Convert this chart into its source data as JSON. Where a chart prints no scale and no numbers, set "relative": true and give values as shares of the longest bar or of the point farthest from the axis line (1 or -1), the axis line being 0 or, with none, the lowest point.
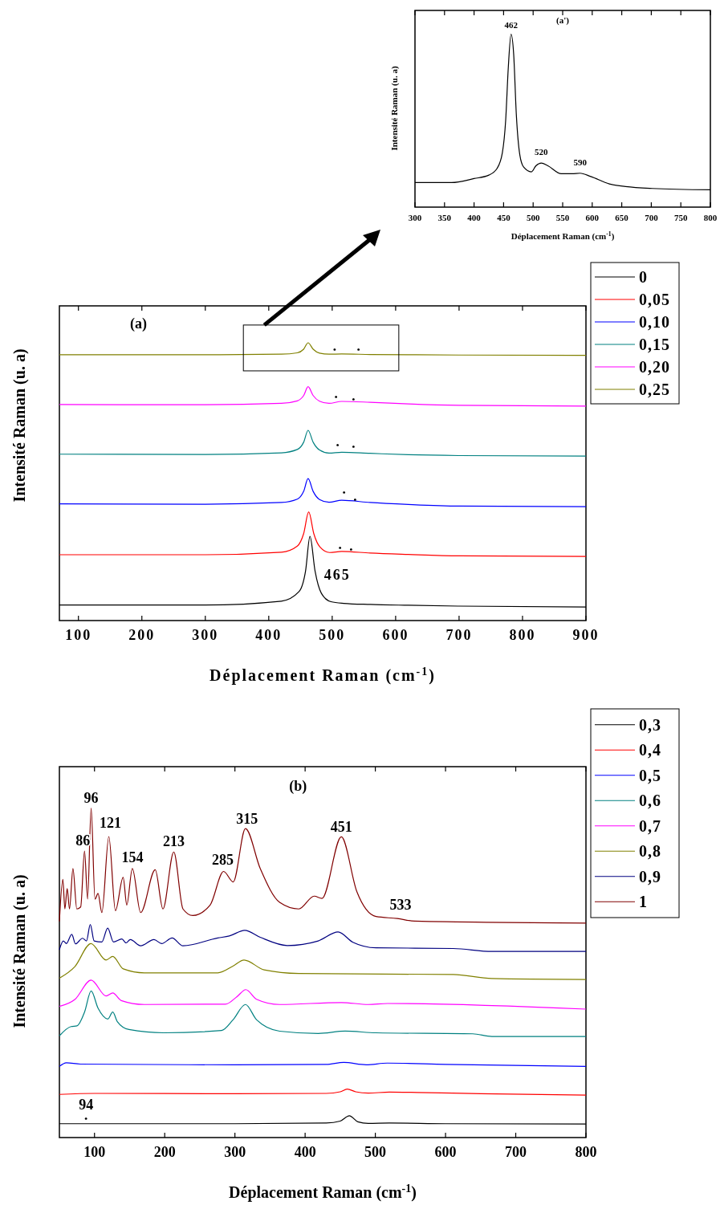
{
  "chart_data": [
    {
      "type": "line",
      "title": "(a')",
      "xlabel": "Déplacement Raman (cm$^{-1}$)",
      "ylabel": "Intensité Raman (u. a)",
      "relative": true,
      "xlim": [
        300,
        800
      ],
      "xticks": [
        300,
        350,
        400,
        450,
        500,
        550,
        600,
        650,
        700,
        750,
        800
      ],
      "series": [
        {
          "color": "#000000",
          "x": [
            300,
            362,
            400,
            425,
            439,
            448,
            453.5,
            458,
            462.6,
            467,
            471.6,
            477.5,
            484,
            497,
            504.7,
            513.8,
            525,
            547.7,
            565.8,
            579.4,
            597.6,
            629,
            656.4,
            701.7,
            800
          ],
          "values": [
            0.142,
            0.142,
            0.165,
            0.185,
            0.224,
            0.316,
            0.501,
            0.81,
            1.0,
            0.887,
            0.532,
            0.301,
            0.231,
            0.204,
            0.239,
            0.255,
            0.239,
            0.193,
            0.193,
            0.196,
            0.177,
            0.134,
            0.119,
            0.108,
            0.1
          ]
        }
      ],
      "annotations": [
        {
          "text": "462",
          "x": 462.6,
          "y": 1.0
        },
        {
          "text": "520",
          "x": 513.8,
          "y": 0.255
        },
        {
          "text": "590",
          "x": 579.4,
          "y": 0.196
        }
      ]
    },
    {
      "type": "line",
      "title": "(a)",
      "xlabel": "Déplacement Raman (cm$^{-1}$)",
      "ylabel": "Intensité Raman (u. a)",
      "relative": true,
      "xlim": [
        70,
        900
      ],
      "xticks": [
        100,
        200,
        300,
        400,
        500,
        600,
        700,
        800,
        900
      ],
      "legend": "top right",
      "series": [
        {
          "name": "0",
          "color": "#000000",
          "x": [
            70,
            300,
            420,
            448,
            458,
            465,
            473,
            483,
            498,
            518,
            560,
            620,
            700,
            900
          ],
          "values": [
            0.056,
            0.056,
            0.07,
            0.105,
            0.178,
            0.303,
            0.178,
            0.098,
            0.068,
            0.062,
            0.058,
            0.055,
            0.052,
            0.049
          ]
        },
        {
          "name": "0,05",
          "color": "#ff0000",
          "x": [
            70,
            300,
            420,
            445,
            455,
            463,
            471,
            481,
            496,
            515,
            560,
            620,
            700,
            900
          ],
          "values": [
            0.237,
            0.237,
            0.246,
            0.268,
            0.313,
            0.391,
            0.313,
            0.264,
            0.245,
            0.249,
            0.243,
            0.238,
            0.233,
            0.231
          ]
        },
        {
          "name": "0,10",
          "color": "#0000ff",
          "x": [
            70,
            300,
            420,
            445,
            455,
            462,
            470,
            480,
            495,
            515,
            560,
            620,
            700,
            900
          ],
          "values": [
            0.42,
            0.419,
            0.425,
            0.437,
            0.465,
            0.511,
            0.465,
            0.436,
            0.426,
            0.433,
            0.425,
            0.418,
            0.412,
            0.41
          ]
        },
        {
          "name": "0,15",
          "color": "#008080",
          "x": [
            70,
            300,
            420,
            445,
            455,
            462,
            470,
            480,
            495,
            515,
            560,
            620,
            700,
            900
          ],
          "values": [
            0.599,
            0.598,
            0.604,
            0.616,
            0.642,
            0.685,
            0.642,
            0.614,
            0.603,
            0.606,
            0.602,
            0.597,
            0.594,
            0.592
          ]
        },
        {
          "name": "0,20",
          "color": "#ff00ff",
          "x": [
            70,
            300,
            420,
            445,
            455,
            462,
            470,
            480,
            495,
            515,
            560,
            620,
            700,
            900
          ],
          "values": [
            0.778,
            0.777,
            0.782,
            0.791,
            0.81,
            0.842,
            0.81,
            0.79,
            0.782,
            0.789,
            0.786,
            0.78,
            0.775,
            0.772
          ]
        },
        {
          "name": "0,25",
          "color": "#808000",
          "x": [
            70,
            300,
            420,
            445,
            455,
            462,
            470,
            480,
            495,
            515,
            560,
            620,
            700,
            900
          ],
          "values": [
            0.957,
            0.957,
            0.959,
            0.964,
            0.977,
            1.0,
            0.977,
            0.963,
            0.959,
            0.96,
            0.958,
            0.957,
            0.956,
            0.955
          ]
        }
      ],
      "annotations": [
        {
          "text": "465",
          "x": 465,
          "y": 0.303
        },
        {
          "text": "•",
          "x": 495,
          "y": 0.959
        },
        {
          "text": "•",
          "x": 515,
          "y": 0.96
        },
        {
          "text": "•",
          "x": 515,
          "y": 0.789
        },
        {
          "text": "•",
          "x": 560,
          "y": 0.786
        },
        {
          "text": "•",
          "x": 515,
          "y": 0.606
        },
        {
          "text": "•",
          "x": 560,
          "y": 0.602
        },
        {
          "text": "•",
          "x": 515,
          "y": 0.433
        },
        {
          "text": "•",
          "x": 560,
          "y": 0.425
        },
        {
          "text": "•",
          "x": 515,
          "y": 0.249
        },
        {
          "text": "•",
          "x": 560,
          "y": 0.243
        }
      ]
    },
    {
      "type": "line",
      "title": "(b)",
      "xlabel": "Déplacement Raman (cm$^{-1}$)",
      "ylabel": "Intensité Raman (u. a)",
      "relative": true,
      "xlim": [
        50,
        800
      ],
      "xticks": [
        100,
        200,
        300,
        400,
        500,
        600,
        700,
        800
      ],
      "legend": "top right",
      "series": [
        {
          "name": "0,3",
          "color": "#000000",
          "x": [
            50,
            300,
            430,
            450,
            463,
            475,
            490,
            520,
            600,
            800
          ],
          "values": [
            0.042,
            0.042,
            0.044,
            0.05,
            0.066,
            0.048,
            0.043,
            0.044,
            0.042,
            0.041
          ]
        },
        {
          "name": "0,4",
          "color": "#ff0000",
          "x": [
            50,
            100,
            300,
            430,
            450,
            460,
            472,
            490,
            520,
            560,
            650,
            800
          ],
          "values": [
            0.131,
            0.134,
            0.133,
            0.134,
            0.139,
            0.147,
            0.139,
            0.135,
            0.138,
            0.137,
            0.133,
            0.129
          ]
        },
        {
          "name": "0,5",
          "color": "#0000ff",
          "x": [
            50,
            60,
            80,
            300,
            430,
            455,
            487,
            517,
            600,
            800
          ],
          "values": [
            0.216,
            0.227,
            0.223,
            0.221,
            0.222,
            0.228,
            0.221,
            0.226,
            0.222,
            0.216
          ]
        },
        {
          "name": "0,6",
          "color": "#008080",
          "x": [
            50,
            66.6,
            75,
            85.8,
            95.2,
            105,
            119,
            126,
            132.5,
            149,
            198.6,
            281,
            297.5,
            315,
            330.7,
            363.7,
            418.7,
            457,
            501,
            638.7,
            666,
            800
          ],
          "values": [
            0.309,
            0.337,
            0.339,
            0.381,
            0.445,
            0.393,
            0.36,
            0.381,
            0.352,
            0.328,
            0.318,
            0.325,
            0.358,
            0.404,
            0.358,
            0.323,
            0.316,
            0.323,
            0.318,
            0.315,
            0.307,
            0.307
          ]
        },
        {
          "name": "0,7",
          "color": "#ff00ff",
          "x": [
            50,
            72,
            95.2,
            116.5,
            126,
            138,
            171,
            286.5,
            303,
            315.5,
            330.7,
            363.7,
            451.6,
            490,
            517.6,
            800
          ],
          "values": [
            0.398,
            0.419,
            0.478,
            0.43,
            0.439,
            0.416,
            0.404,
            0.405,
            0.428,
            0.449,
            0.42,
            0.404,
            0.41,
            0.404,
            0.407,
            0.39
          ]
        },
        {
          "name": "0,8",
          "color": "#808000",
          "x": [
            50,
            72,
            95,
            116.5,
            126,
            141,
            171,
            275.6,
            297.6,
            313,
            341.6,
            391,
            611,
            666,
            800
          ],
          "values": [
            0.484,
            0.519,
            0.589,
            0.539,
            0.55,
            0.512,
            0.5,
            0.5,
            0.521,
            0.539,
            0.509,
            0.498,
            0.495,
            0.483,
            0.48
          ]
        },
        {
          "name": "0,9",
          "color": "#000080",
          "x": [
            50,
            55.5,
            60,
            67.6,
            73,
            83,
            88.5,
            94,
            99.5,
            110.5,
            118.8,
            127,
            139,
            145,
            151,
            165.7,
            184.7,
            195.7,
            210.6,
            226,
            275.6,
            292,
            314,
            336,
            374.6,
            418.6,
            447,
            468,
            501,
            611,
            666,
            800
          ],
          "values": [
            0.57,
            0.597,
            0.589,
            0.617,
            0.588,
            0.605,
            0.597,
            0.647,
            0.597,
            0.594,
            0.636,
            0.594,
            0.603,
            0.591,
            0.601,
            0.582,
            0.601,
            0.589,
            0.606,
            0.582,
            0.606,
            0.612,
            0.629,
            0.608,
            0.583,
            0.597,
            0.624,
            0.593,
            0.576,
            0.574,
            0.565,
            0.565
          ]
        },
        {
          "name": "1",
          "color": "#800000",
          "x": [
            50,
            54.9,
            57.8,
            61.1,
            64.4,
            69.3,
            74.8,
            80.3,
            85.8,
            90.2,
            95.2,
            100.7,
            105,
            110.5,
            120.4,
            129.8,
            140.8,
            146,
            153.9,
            165.7,
            186.5,
            197.5,
            212.9,
            226,
            240,
            264.7,
            283.9,
            297.6,
            315,
            336,
            363.7,
            391,
            413,
            424,
            451.6,
            473.6,
            501,
            531.3,
            556,
            800
          ],
          "values": [
            0.656,
            0.784,
            0.694,
            0.756,
            0.694,
            0.817,
            0.694,
            0.7,
            0.87,
            0.724,
            1.0,
            0.724,
            0.741,
            0.683,
            0.914,
            0.689,
            0.79,
            0.706,
            0.817,
            0.683,
            0.813,
            0.694,
            0.867,
            0.694,
            0.674,
            0.706,
            0.808,
            0.776,
            0.938,
            0.817,
            0.714,
            0.694,
            0.733,
            0.726,
            0.913,
            0.747,
            0.671,
            0.665,
            0.657,
            0.651
          ]
        }
      ],
      "annotations": [
        {
          "text": "86",
          "x": 85.8,
          "y": 0.87
        },
        {
          "text": "96",
          "x": 95.2,
          "y": 1.0
        },
        {
          "text": "121",
          "x": 120.4,
          "y": 0.914
        },
        {
          "text": "154",
          "x": 153.9,
          "y": 0.817
        },
        {
          "text": "213",
          "x": 212.9,
          "y": 0.867
        },
        {
          "text": "285",
          "x": 283.9,
          "y": 0.808
        },
        {
          "text": "315",
          "x": 315,
          "y": 0.938
        },
        {
          "text": "451",
          "x": 451.6,
          "y": 0.913
        },
        {
          "text": "533",
          "x": 531.3,
          "y": 0.665
        },
        {
          "text": "94",
          "x": 88,
          "y": 0.042
        },
        {
          "text": "•",
          "x": 88,
          "y": 0.042
        }
      ]
    }
  ]
}
